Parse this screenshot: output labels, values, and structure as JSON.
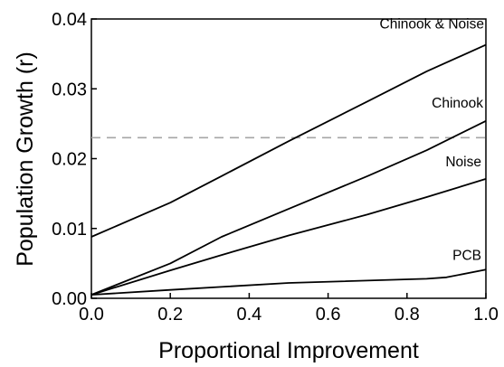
{
  "chart_data": {
    "type": "line",
    "title": "",
    "xlabel": "Proportional Improvement",
    "ylabel": "Population Growth (r)",
    "xlim": [
      0,
      1
    ],
    "ylim": [
      0,
      0.04
    ],
    "grid": false,
    "legend": "none",
    "x_ticks": [
      "0.0",
      "0.2",
      "0.4",
      "0.6",
      "0.8",
      "1.0"
    ],
    "y_ticks": [
      "0.00",
      "0.01",
      "0.02",
      "0.03",
      "0.04"
    ],
    "reference_line": {
      "y": 0.023,
      "style": "dashed",
      "color": "#a6a6a6"
    },
    "series": [
      {
        "name": "Chinook & Noise",
        "x": [
          0,
          0.2,
          0.33,
          0.5,
          0.7,
          0.85,
          1.0
        ],
        "y": [
          0.0088,
          0.0137,
          0.0175,
          0.0225,
          0.0282,
          0.0325,
          0.0363
        ]
      },
      {
        "name": "Chinook",
        "x": [
          0,
          0.2,
          0.33,
          0.5,
          0.7,
          0.85,
          1.0
        ],
        "y": [
          0.0005,
          0.005,
          0.0088,
          0.0128,
          0.0175,
          0.0212,
          0.0254
        ]
      },
      {
        "name": "Noise",
        "x": [
          0,
          0.2,
          0.33,
          0.5,
          0.7,
          0.85,
          1.0
        ],
        "y": [
          0.0005,
          0.004,
          0.0062,
          0.009,
          0.012,
          0.0145,
          0.0171
        ]
      },
      {
        "name": "PCB",
        "x": [
          0,
          0.2,
          0.5,
          0.85,
          0.9,
          1.0
        ],
        "y": [
          0.0005,
          0.0012,
          0.0022,
          0.0028,
          0.003,
          0.0041
        ]
      }
    ],
    "colors": {
      "line": "#000000",
      "axis": "#000000",
      "reference": "#a6a6a6"
    }
  }
}
